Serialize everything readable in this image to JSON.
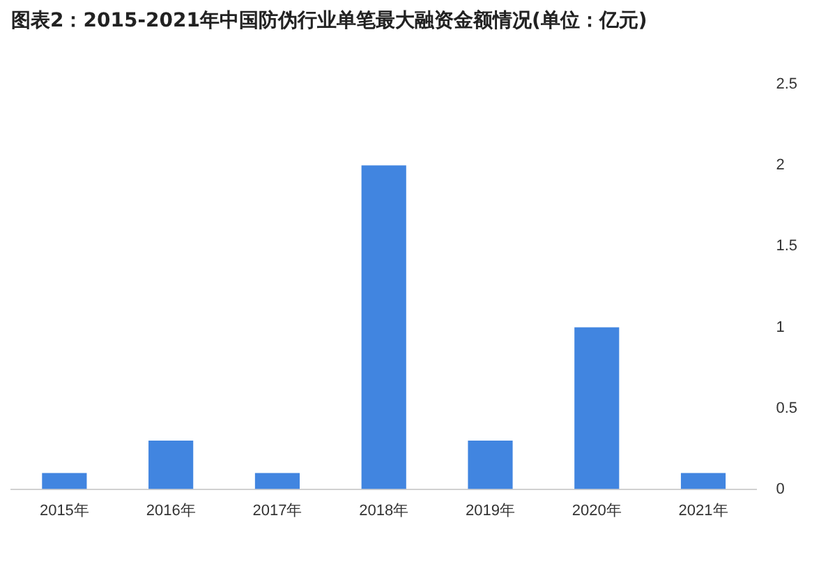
{
  "chart_data": {
    "type": "bar",
    "title": "图表2：2015-2021年中国防伪行业单笔最大融资金额情况(单位：亿元)",
    "categories": [
      "2015年",
      "2016年",
      "2017年",
      "2018年",
      "2019年",
      "2020年",
      "2021年"
    ],
    "values": [
      0.1,
      0.3,
      0.1,
      2,
      0.3,
      1,
      0.1
    ],
    "color": "#4185e0",
    "ylim": [
      0,
      2.5
    ],
    "yticks": [
      0,
      0.5,
      1,
      1.5,
      2,
      2.5
    ],
    "grid": false
  }
}
